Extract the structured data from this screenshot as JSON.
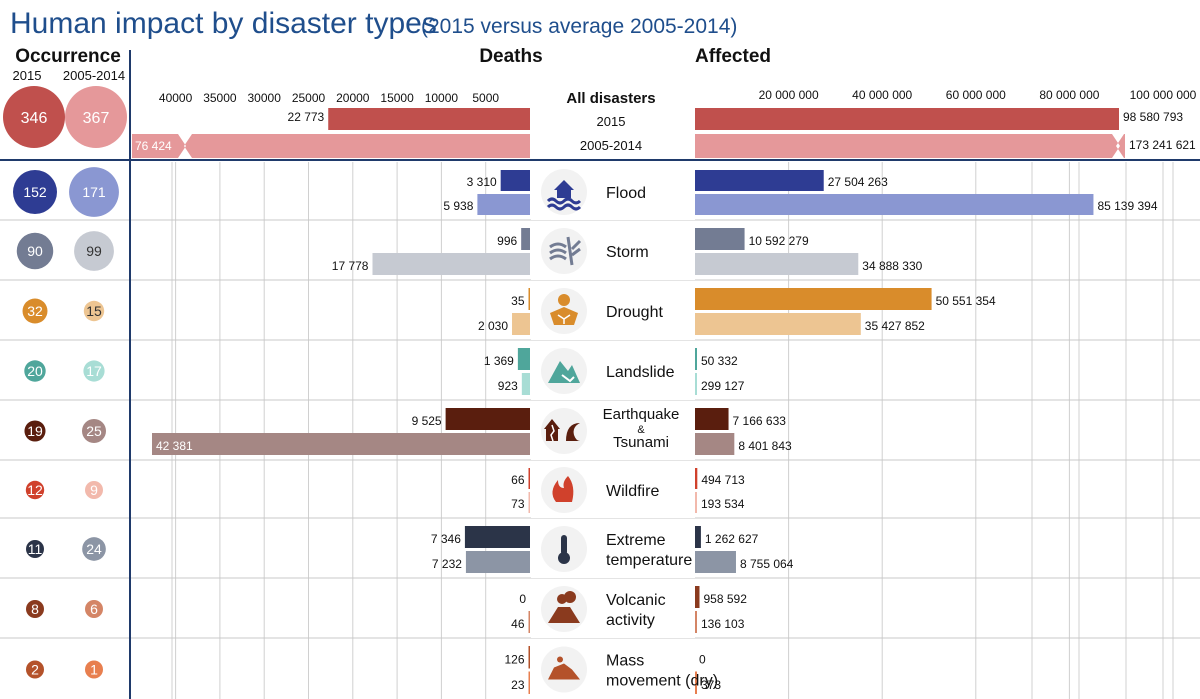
{
  "chart_data": {
    "type": "bar",
    "title": "Human impact by disaster types",
    "subtitle": "(2015 versus average 2005-2014)",
    "occurrence_header": "Occurrence",
    "occ_year_2015": "2015",
    "occ_year_avg": "2005-2014",
    "deaths_header": "Deaths",
    "affected_header": "Affected",
    "deaths_ticks": [
      {
        "value": 40000,
        "label": "40000"
      },
      {
        "value": 35000,
        "label": "35000"
      },
      {
        "value": 30000,
        "label": "30000"
      },
      {
        "value": 25000,
        "label": "25000"
      },
      {
        "value": 20000,
        "label": "20000"
      },
      {
        "value": 15000,
        "label": "15000"
      },
      {
        "value": 10000,
        "label": "10000"
      },
      {
        "value": 5000,
        "label": "5000"
      }
    ],
    "affected_ticks": [
      {
        "value": 20000000,
        "label": "20 000 000"
      },
      {
        "value": 40000000,
        "label": "40 000 000"
      },
      {
        "value": 60000000,
        "label": "60 000 000"
      },
      {
        "value": 80000000,
        "label": "80 000 000"
      },
      {
        "value": 100000000,
        "label": "100 000 000"
      }
    ],
    "deaths_axis_max": 45000,
    "affected_axis_max": 102000000,
    "all_disasters": {
      "label": "All disasters",
      "year_2015": "2015",
      "year_avg": "2005-2014",
      "occurrence_2015": 346,
      "occurrence_avg": 367,
      "deaths_2015": 22773,
      "deaths_2015_label": "22 773",
      "deaths_avg": 76424,
      "deaths_avg_label": "76 424",
      "affected_2015": 98580793,
      "affected_2015_label": "98 580 793",
      "affected_avg": 173241621,
      "affected_avg_label": "173 241 621",
      "colors": {
        "c2015": "#C0504D",
        "cavg": "#E5989A"
      }
    },
    "series": [
      {
        "name": "Flood",
        "label_lines": [
          "Flood"
        ],
        "icon": "flood-icon",
        "occ_2015": 152,
        "occ_avg": 171,
        "deaths_2015": 3310,
        "deaths_2015_label": "3 310",
        "deaths_avg": 5938,
        "deaths_avg_label": "5 938",
        "aff_2015": 27504263,
        "aff_2015_label": "27 504 263",
        "aff_avg": 85139394,
        "aff_avg_label": "85 139 394",
        "c2015": "#2E3C93",
        "cavg": "#8A97D2"
      },
      {
        "name": "Storm",
        "label_lines": [
          "Storm"
        ],
        "icon": "storm-icon",
        "occ_2015": 90,
        "occ_avg": 99,
        "deaths_2015": 996,
        "deaths_2015_label": "996",
        "deaths_avg": 17778,
        "deaths_avg_label": "17 778",
        "aff_2015": 10592279,
        "aff_2015_label": "10 592 279",
        "aff_avg": 34888330,
        "aff_avg_label": "34 888 330",
        "c2015": "#737C93",
        "cavg": "#C6CAD2"
      },
      {
        "name": "Drought",
        "label_lines": [
          "Drought"
        ],
        "icon": "drought-icon",
        "occ_2015": 32,
        "occ_avg": 15,
        "deaths_2015": 35,
        "deaths_2015_label": "35",
        "deaths_avg": 2030,
        "deaths_avg_label": "2 030",
        "aff_2015": 50551354,
        "aff_2015_label": "50 551 354",
        "aff_avg": 35427852,
        "aff_avg_label": "35 427 852",
        "c2015": "#D98C2B",
        "cavg": "#EDC592"
      },
      {
        "name": "Landslide",
        "label_lines": [
          "Landslide"
        ],
        "icon": "landslide-icon",
        "occ_2015": 20,
        "occ_avg": 17,
        "deaths_2015": 1369,
        "deaths_2015_label": "1 369",
        "deaths_avg": 923,
        "deaths_avg_label": "923",
        "aff_2015": 50332,
        "aff_2015_label": "50 332",
        "aff_avg": 299127,
        "aff_avg_label": "299 127",
        "c2015": "#4FA69B",
        "cavg": "#A8DDD5"
      },
      {
        "name": "Earthquake & Tsunami",
        "label_lines": [
          "Earthquake",
          "&",
          "Tsunami"
        ],
        "icon": "earthquake-tsunami-icon",
        "occ_2015": 19,
        "occ_avg": 25,
        "deaths_2015": 9525,
        "deaths_2015_label": "9 525",
        "deaths_avg": 42381,
        "deaths_avg_label": "42 381",
        "aff_2015": 7166633,
        "aff_2015_label": "7 166 633",
        "aff_avg": 8401843,
        "aff_avg_label": "8 401 843",
        "c2015": "#5A1E0E",
        "cavg": "#A58784"
      },
      {
        "name": "Wildfire",
        "label_lines": [
          "Wildfire"
        ],
        "icon": "wildfire-icon",
        "occ_2015": 12,
        "occ_avg": 9,
        "deaths_2015": 66,
        "deaths_2015_label": "66",
        "deaths_avg": 73,
        "deaths_avg_label": "73",
        "aff_2015": 494713,
        "aff_2015_label": "494 713",
        "aff_avg": 193534,
        "aff_avg_label": "193 534",
        "c2015": "#D0412C",
        "cavg": "#F2B9AC"
      },
      {
        "name": "Extreme temperature",
        "label_lines": [
          "Extreme",
          "temperature"
        ],
        "icon": "thermometer-icon",
        "occ_2015": 11,
        "occ_avg": 24,
        "deaths_2015": 7346,
        "deaths_2015_label": "7 346",
        "deaths_avg": 7232,
        "deaths_avg_label": "7 232",
        "aff_2015": 1262627,
        "aff_2015_label": "1 262 627",
        "aff_avg": 8755064,
        "aff_avg_label": "8 755 064",
        "c2015": "#2B3448",
        "cavg": "#8C95A5"
      },
      {
        "name": "Volcanic activity",
        "label_lines": [
          "Volcanic",
          "activity"
        ],
        "icon": "volcano-icon",
        "occ_2015": 8,
        "occ_avg": 6,
        "deaths_2015": 0,
        "deaths_2015_label": "0",
        "deaths_avg": 46,
        "deaths_avg_label": "46",
        "aff_2015": 958592,
        "aff_2015_label": "958 592",
        "aff_avg": 136103,
        "aff_avg_label": "136 103",
        "c2015": "#8A3A1E",
        "cavg": "#D48566"
      },
      {
        "name": "Mass movement (dry)",
        "label_lines": [
          "Mass",
          "movement (dry)"
        ],
        "icon": "mass-movement-icon",
        "occ_2015": 2,
        "occ_avg": 1,
        "deaths_2015": 126,
        "deaths_2015_label": "126",
        "deaths_avg": 23,
        "deaths_avg_label": "23",
        "aff_2015": 0,
        "aff_2015_label": "0",
        "aff_avg": 373,
        "aff_avg_label": "373",
        "c2015": "#B4522A",
        "cavg": "#E87F4F"
      }
    ]
  }
}
